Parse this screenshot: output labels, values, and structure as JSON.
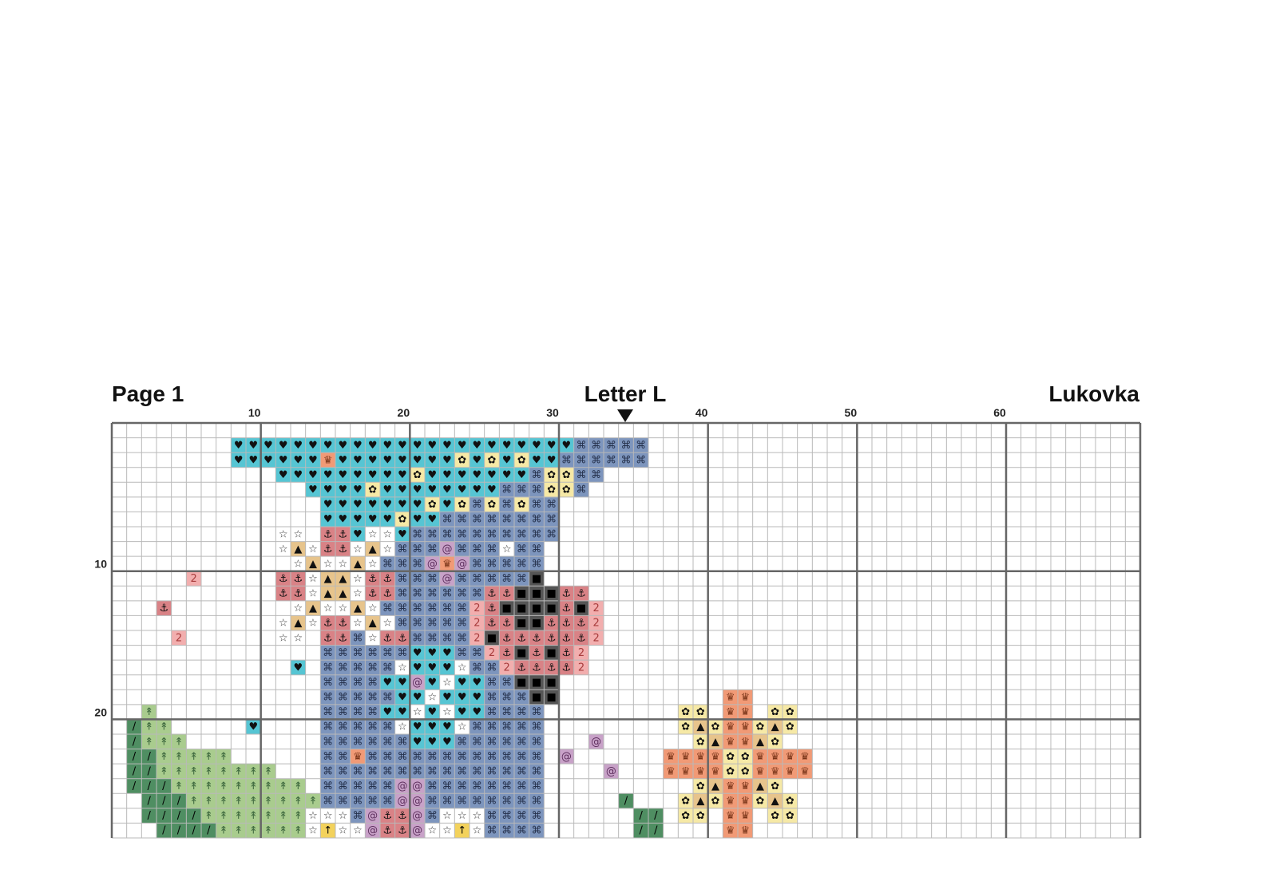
{
  "header": {
    "left": "Page 1",
    "center": "Letter L",
    "right": "Lukovka"
  },
  "x_ticks": [
    10,
    20,
    30,
    40,
    50,
    60
  ],
  "y_ticks": [
    10,
    20
  ],
  "pattern": {
    "legend": {
      "H": {
        "symbol": "♥",
        "color": "#56c5d3",
        "ink": "#111111"
      },
      "K": {
        "symbol": "⌘",
        "color": "#7d95bd",
        "ink": "#26324d"
      },
      "S": {
        "symbol": "☆",
        "color": "#ffffff",
        "ink": "#333333"
      },
      "A": {
        "symbol": "▲",
        "color": "#e7c48c",
        "ink": "#111111"
      },
      "F": {
        "symbol": "✿",
        "color": "#f6e9a6",
        "ink": "#111111"
      },
      "D": {
        "symbol": "⚓",
        "color": "#d98286",
        "ink": "#111111"
      },
      "2": {
        "symbol": "2",
        "color": "#f2aeae",
        "ink": "#a83c3c"
      },
      "B": {
        "symbol": "■",
        "color": "#555555",
        "ink": "#000000"
      },
      "G": {
        "symbol": "@",
        "color": "#c8a2c8",
        "ink": "#5e2f5e"
      },
      "T": {
        "symbol": "↟",
        "color": "#a9cc8e",
        "ink": "#3f6a3f"
      },
      "/": {
        "symbol": "/",
        "color": "#4f8e62",
        "ink": "#000000"
      },
      "W": {
        "symbol": "♛",
        "color": "#f19a76",
        "ink": "#7a3519"
      },
      "U": {
        "symbol": "↑",
        "color": "#f3d25c",
        "ink": "#000000"
      }
    },
    "rows": [
      ".",
      "........HHHHHHHHHHHHHHHHHHHHHHHKKKKK",
      "........HHHHHHWHHHHHHHHFHFHFHHKKKKKK",
      "...........HHHHHHHHHFHHHHHHHKFFKK",
      ".............HHHHFHHHHHHHHKKKFFK",
      "..............HHHHHHHFHFKFKFKK",
      "..............HHHHHFHHKKKKKKKK",
      "...........SS.DDHSSHKKKKKKKKKK",
      "...........SASDDSASKKKGKKKSKK",
      "............SASSASKKKGWGKKKKK",
      ".....2.....DDSAASDDKKKGKKKKKB",
      "...........DDSAASDDKKKKKKDDBBBDD",
      "...D........SASSASKKKKKK2DBBBBDB2",
      "...........SASDDSASKKKKK2DDBBDDD2",
      "....2......SS.DDKSDDKKKK2BDDDDDD2",
      "..............KKKKKKHHHKK2DBDBD2",
      "............H.KKKKKSHHHSKK2DDDD2",
      "..............KKKKHHGHSHHKKBBB",
      "..............KKKKKHHSHHHKKKBB...........WW",
      "..T...........KKKKHHSHSHHKKKK.........FF.WW.FF",
      "./TT.....H....KKKKKSHHHSKKKKK.........FAFWWFAF",
      "./TTT.........KKKKKKHHHKKKKKK...G......FAWWAF",
      ".//TTTTT......KKWKKKKKKKKKKKK.G......WWWWFFWWWW",
      ".//TTTTTTTT...KKKKKKKKKKKKKKK....G...WWWWFFWWWW",
      ".///TTTTTTTTT.KKKKKGGKKKKKKKK..........FAWWAF",
      "..///TTTTTTTTTKKKKKGGKKKKKKKK...../...FAFWWFAF",
      "..////TTTTTTTSSSKGDDGKSSSKKKK......//.FF.WW.FF",
      "...////TTTTTTSUSSGDDGSSUSKKKK......//....WW"
    ]
  }
}
